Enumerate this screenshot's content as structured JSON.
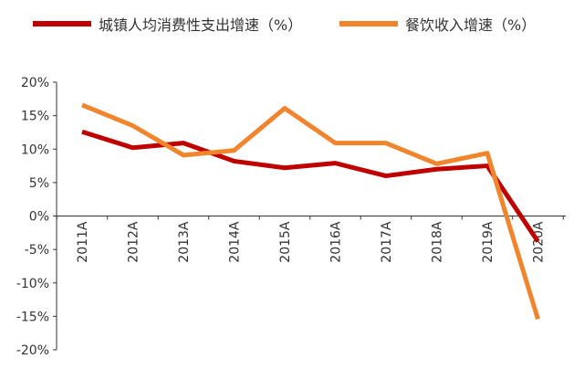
{
  "chart_data": {
    "type": "line",
    "categories": [
      "2011A",
      "2012A",
      "2013A",
      "2014A",
      "2015A",
      "2016A",
      "2017A",
      "2018A",
      "2019A",
      "2020A"
    ],
    "series": [
      {
        "name": "城镇人均消费性支出增速（%）",
        "color": "#c00000",
        "values": [
          12.6,
          10.2,
          10.9,
          8.2,
          7.2,
          7.9,
          6.0,
          7.0,
          7.5,
          -3.8
        ]
      },
      {
        "name": "餐饮收入增速（%）",
        "color": "#f0852d",
        "values": [
          16.6,
          13.5,
          9.1,
          9.8,
          16.1,
          10.9,
          10.9,
          7.8,
          9.4,
          -15.4
        ]
      }
    ],
    "yticks": [
      "20%",
      "15%",
      "10%",
      "5%",
      "0%",
      "-5%",
      "-10%",
      "-15%",
      "-20%"
    ],
    "ytick_values": [
      20,
      15,
      10,
      5,
      0,
      -5,
      -10,
      -15,
      -20
    ],
    "ylim": [
      -20,
      20
    ],
    "legend": "top",
    "grid": false
  }
}
